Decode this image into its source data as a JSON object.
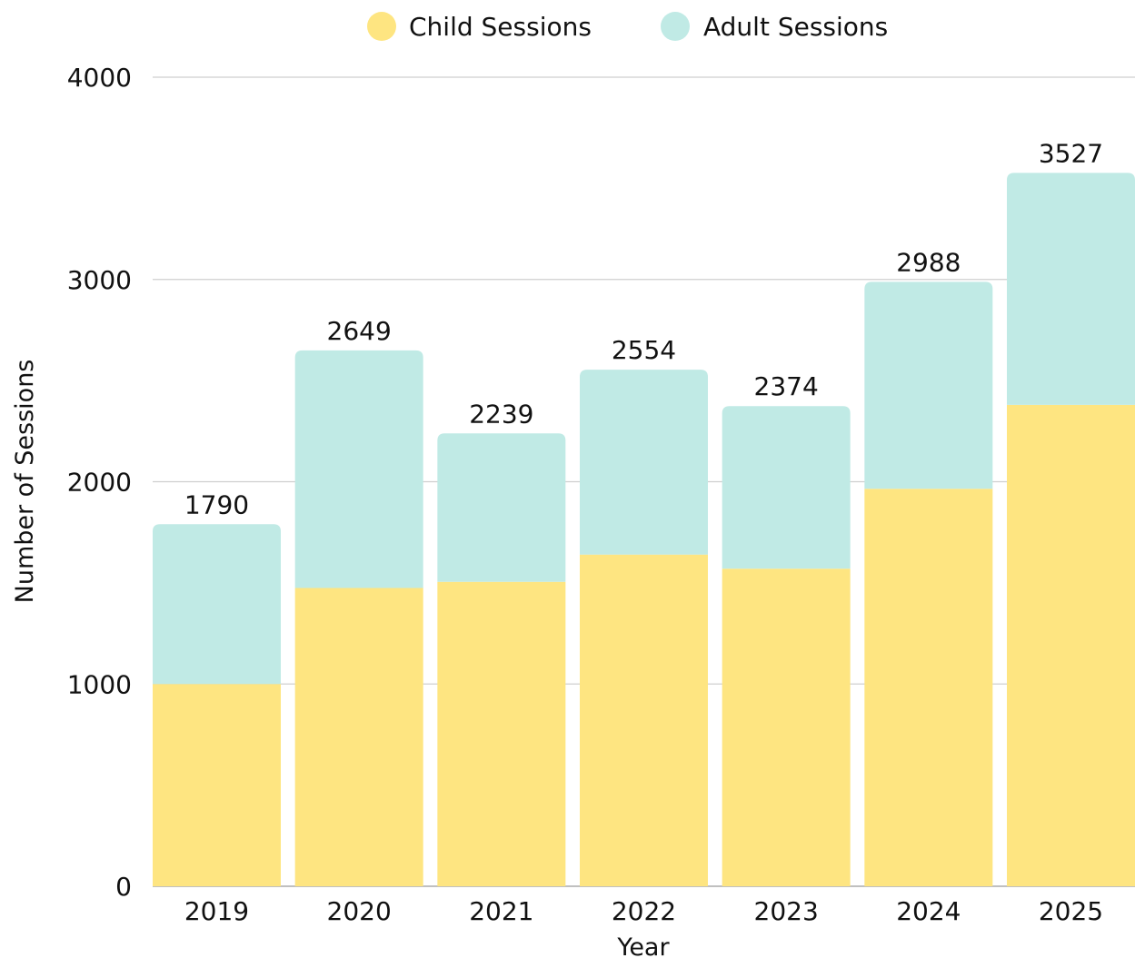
{
  "chart_data": {
    "type": "bar",
    "stacked": true,
    "title": "",
    "xlabel": "Year",
    "ylabel": "Number of Sessions",
    "categories": [
      "2019",
      "2020",
      "2021",
      "2022",
      "2023",
      "2024",
      "2025"
    ],
    "series": [
      {
        "name": "Child Sessions",
        "color": "#fee581",
        "values": [
          1000,
          1475,
          1505,
          1640,
          1570,
          1965,
          2380
        ]
      },
      {
        "name": "Adult Sessions",
        "color": "#c0eae5",
        "values": [
          790,
          1174,
          734,
          914,
          804,
          1023,
          1147
        ]
      }
    ],
    "totals": [
      1790,
      2649,
      2239,
      2554,
      2374,
      2988,
      3527
    ],
    "ylim": [
      0,
      4000
    ],
    "yticks": [
      0,
      1000,
      2000,
      3000,
      4000
    ],
    "grid": true,
    "legend": "top-center"
  }
}
